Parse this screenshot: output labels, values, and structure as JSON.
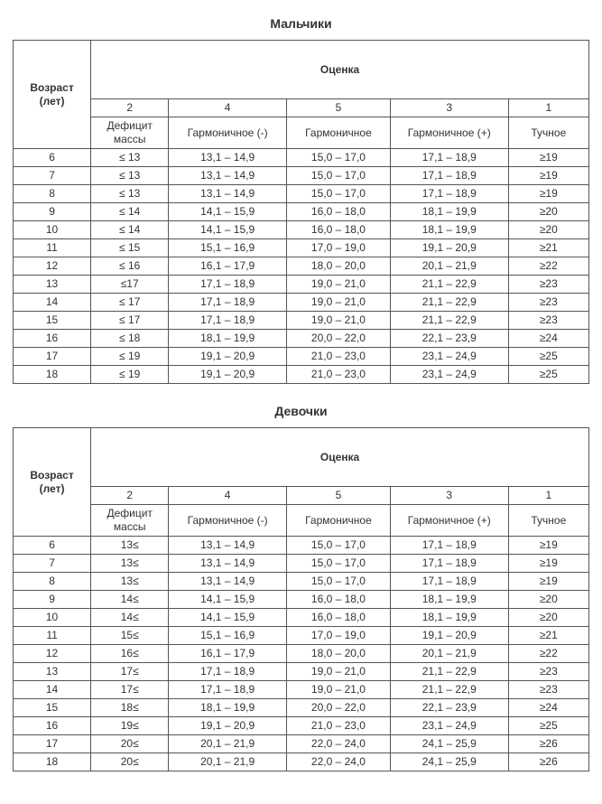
{
  "tables": [
    {
      "title": "Мальчики",
      "age_header": "Возраст\n(лет)",
      "score_header": "Оценка",
      "score_numbers": [
        "2",
        "4",
        "5",
        "3",
        "1"
      ],
      "score_labels": [
        "Дефицит массы",
        "Гармоничное (-)",
        "Гармоничное",
        "Гармоничное (+)",
        "Тучное"
      ],
      "rows": [
        [
          "6",
          "≤ 13",
          "13,1 – 14,9",
          "15,0 – 17,0",
          "17,1 – 18,9",
          "≥19"
        ],
        [
          "7",
          "≤ 13",
          "13,1 – 14,9",
          "15,0 – 17,0",
          "17,1 – 18,9",
          "≥19"
        ],
        [
          "8",
          "≤ 13",
          "13,1 – 14,9",
          "15,0 – 17,0",
          "17,1 – 18,9",
          "≥19"
        ],
        [
          "9",
          "≤ 14",
          "14,1 – 15,9",
          "16,0 – 18,0",
          "18,1 – 19,9",
          "≥20"
        ],
        [
          "10",
          "≤ 14",
          "14,1 – 15,9",
          "16,0 – 18,0",
          "18,1 – 19,9",
          "≥20"
        ],
        [
          "11",
          "≤ 15",
          "15,1 – 16,9",
          "17,0 – 19,0",
          "19,1 – 20,9",
          "≥21"
        ],
        [
          "12",
          "≤ 16",
          "16,1 – 17,9",
          "18,0 – 20,0",
          "20,1 – 21,9",
          "≥22"
        ],
        [
          "13",
          "≤17",
          "17,1 – 18,9",
          "19,0 – 21,0",
          "21,1 – 22,9",
          "≥23"
        ],
        [
          "14",
          "≤ 17",
          "17,1 – 18,9",
          "19,0 – 21,0",
          "21,1 – 22,9",
          "≥23"
        ],
        [
          "15",
          "≤ 17",
          "17,1 – 18,9",
          "19,0 – 21,0",
          "21,1 – 22,9",
          "≥23"
        ],
        [
          "16",
          "≤ 18",
          "18,1 – 19,9",
          "20,0 – 22,0",
          "22,1 – 23,9",
          "≥24"
        ],
        [
          "17",
          "≤ 19",
          "19,1 – 20,9",
          "21,0 – 23,0",
          "23,1 – 24,9",
          "≥25"
        ],
        [
          "18",
          "≤ 19",
          "19,1 – 20,9",
          "21,0 – 23,0",
          "23,1 – 24,9",
          "≥25"
        ]
      ]
    },
    {
      "title": "Девочки",
      "age_header": "Возраст\n(лет)",
      "score_header": "Оценка",
      "score_numbers": [
        "2",
        "4",
        "5",
        "3",
        "1"
      ],
      "score_labels": [
        "Дефицит массы",
        "Гармоничное (-)",
        "Гармоничное",
        "Гармоничное (+)",
        "Тучное"
      ],
      "rows": [
        [
          "6",
          "13≤",
          "13,1 – 14,9",
          "15,0 – 17,0",
          "17,1 – 18,9",
          "≥19"
        ],
        [
          "7",
          "13≤",
          "13,1 – 14,9",
          "15,0 – 17,0",
          "17,1 – 18,9",
          "≥19"
        ],
        [
          "8",
          "13≤",
          "13,1 – 14,9",
          "15,0 – 17,0",
          "17,1 – 18,9",
          "≥19"
        ],
        [
          "9",
          "14≤",
          "14,1 – 15,9",
          "16,0 – 18,0",
          "18,1 – 19,9",
          "≥20"
        ],
        [
          "10",
          "14≤",
          "14,1 – 15,9",
          "16,0 – 18,0",
          "18,1 – 19,9",
          "≥20"
        ],
        [
          "11",
          "15≤",
          "15,1 – 16,9",
          "17,0 – 19,0",
          "19,1 – 20,9",
          "≥21"
        ],
        [
          "12",
          "16≤",
          "16,1 – 17,9",
          "18,0 – 20,0",
          "20,1 – 21,9",
          "≥22"
        ],
        [
          "13",
          "17≤",
          "17,1 – 18,9",
          "19,0 – 21,0",
          "21,1 – 22,9",
          "≥23"
        ],
        [
          "14",
          "17≤",
          "17,1 – 18,9",
          "19,0 – 21,0",
          "21,1 – 22,9",
          "≥23"
        ],
        [
          "15",
          "18≤",
          "18,1 – 19,9",
          "20,0 – 22,0",
          "22,1 – 23,9",
          "≥24"
        ],
        [
          "16",
          "19≤",
          "19,1 – 20,9",
          "21,0 – 23,0",
          "23,1 – 24,9",
          "≥25"
        ],
        [
          "17",
          "20≤",
          "20,1 – 21,9",
          "22,0 – 24,0",
          "24,1 – 25,9",
          "≥26"
        ],
        [
          "18",
          "20≤",
          "20,1 – 21,9",
          "22,0 – 24,0",
          "24,1 – 25,9",
          "≥26"
        ]
      ]
    }
  ],
  "style": {
    "background_color": "#ffffff",
    "border_color": "#555555",
    "text_color": "#333333",
    "font_family": "Arial",
    "title_fontsize": 14,
    "body_fontsize": 12
  }
}
